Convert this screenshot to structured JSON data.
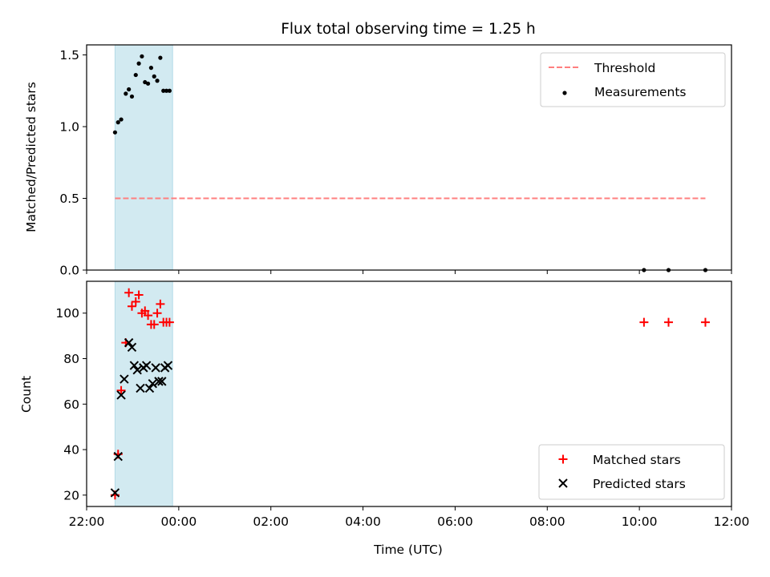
{
  "chart_data": [
    {
      "panel": "top",
      "type": "scatter",
      "title": "Flux total observing time = 1.25 h",
      "ylabel": "Matched/Predicted stars",
      "ylim": [
        0,
        1.57
      ],
      "yticks": [
        0.0,
        0.5,
        1.0,
        1.5
      ],
      "ytick_labels": [
        "0.0",
        "0.5",
        "1.0",
        "1.5"
      ],
      "grid": false,
      "legend": "top-right",
      "shaded_span": {
        "x_start": "22:37",
        "x_end": "23:52",
        "color": "#add8e6"
      },
      "threshold": {
        "name": "Threshold",
        "value": 0.5,
        "x_start": "22:37",
        "x_end": "11:26",
        "color": "#ff7f7f",
        "style": "dashed"
      },
      "series": [
        {
          "name": "Measurements",
          "marker": "dot",
          "color": "#000000",
          "x": [
            "22:37",
            "22:41",
            "22:45",
            "22:51",
            "22:55",
            "22:59",
            "23:04",
            "23:08",
            "23:12",
            "23:16",
            "23:20",
            "23:24",
            "23:28",
            "23:32",
            "23:36",
            "23:40",
            "23:44",
            "23:48",
            "10:06",
            "10:38",
            "11:26"
          ],
          "y": [
            0.96,
            1.03,
            1.05,
            1.23,
            1.26,
            1.21,
            1.36,
            1.44,
            1.49,
            1.31,
            1.3,
            1.41,
            1.35,
            1.32,
            1.48,
            1.25,
            1.25,
            1.25,
            0.0,
            0.0,
            0.0
          ]
        }
      ]
    },
    {
      "panel": "bottom",
      "type": "scatter",
      "xlabel": "Time (UTC)",
      "ylabel": "Count",
      "ylim": [
        15,
        114
      ],
      "yticks": [
        20,
        40,
        60,
        80,
        100
      ],
      "ytick_labels": [
        "20",
        "40",
        "60",
        "80",
        "100"
      ],
      "xticks": [
        "22:00",
        "00:00",
        "02:00",
        "04:00",
        "06:00",
        "08:00",
        "10:00",
        "12:00"
      ],
      "grid": false,
      "legend": "bottom-right",
      "shaded_span": {
        "x_start": "22:37",
        "x_end": "23:52",
        "color": "#add8e6"
      },
      "series": [
        {
          "name": "Matched stars",
          "marker": "plus",
          "color": "#ff0000",
          "x": [
            "22:37",
            "22:41",
            "22:45",
            "22:51",
            "22:55",
            "22:59",
            "23:04",
            "23:08",
            "23:12",
            "23:16",
            "23:20",
            "23:24",
            "23:28",
            "23:32",
            "23:36",
            "23:40",
            "23:44",
            "23:48",
            "10:06",
            "10:38",
            "11:26"
          ],
          "y": [
            20,
            38,
            66,
            87,
            109,
            103,
            105,
            108,
            100,
            101,
            99,
            95,
            95,
            100,
            104,
            96,
            96,
            96,
            96,
            96,
            96
          ]
        },
        {
          "name": "Predicted stars",
          "marker": "x",
          "color": "#000000",
          "x": [
            "22:37",
            "22:41",
            "22:45",
            "22:49",
            "22:55",
            "22:59",
            "23:02",
            "23:06",
            "23:10",
            "23:14",
            "23:18",
            "23:22",
            "23:26",
            "23:30",
            "23:34",
            "23:38",
            "23:42",
            "23:46"
          ],
          "y": [
            21,
            37,
            64,
            71,
            87,
            85,
            77,
            75,
            67,
            76,
            77,
            67,
            69,
            76,
            70,
            70,
            76,
            77
          ]
        }
      ]
    }
  ]
}
